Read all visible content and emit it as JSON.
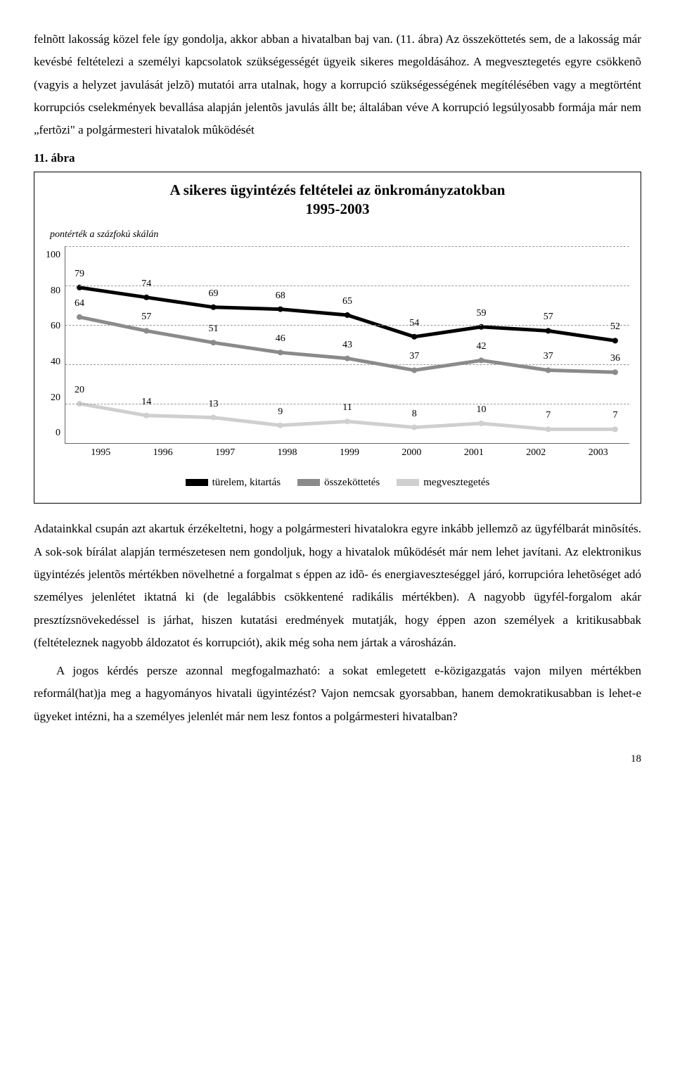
{
  "para1": "felnõtt lakosság közel fele így gondolja, akkor abban a hivatalban baj van. (11. ábra) Az összeköttetés sem, de a lakosság már kevésbé feltételezi a személyi kapcsolatok szükségességét ügyeik sikeres megoldásához. A megvesztegetés egyre csökkenõ (vagyis a helyzet javulását jelzõ) mutatói arra utalnak, hogy a korrupció szükségességének megítélésében vagy a megtörtént korrupciós cselekmények bevallása alapján jelentõs javulás állt be; általában véve A korrupció legsúlyosabb formája már nem „fertõzi\" a polgármesteri hivatalok mûködését",
  "fig_label": "11. ábra",
  "chart": {
    "title_line1": "A sikeres ügyintézés feltételei az önkrományzatokban",
    "title_line2": "1995‑2003",
    "subtitle": "pontérték a százfokú skálán",
    "years": [
      "1995",
      "1996",
      "1997",
      "1998",
      "1999",
      "2000",
      "2001",
      "2002",
      "2003"
    ],
    "yticks": [
      0,
      20,
      40,
      60,
      80,
      100
    ],
    "series": [
      {
        "name": "türelem, kitartás",
        "color": "#000000",
        "width": 5,
        "values": [
          79,
          74,
          69,
          68,
          65,
          54,
          59,
          57,
          52
        ]
      },
      {
        "name": "összeköttetés",
        "color": "#8a8a8a",
        "width": 5,
        "values": [
          64,
          57,
          51,
          46,
          43,
          37,
          42,
          37,
          36
        ]
      },
      {
        "name": "megvesztegetés",
        "color": "#cfcfcf",
        "width": 5,
        "values": [
          20,
          14,
          13,
          9,
          11,
          8,
          10,
          7,
          7
        ]
      }
    ],
    "ymax": 100,
    "grid_color": "#999"
  },
  "para2": "Adatainkkal csupán azt akartuk érzékeltetni, hogy a polgármesteri hivatalokra egyre inkább jellemzõ az ügyfélbarát minõsítés. A sok‑sok bírálat alapján természetesen nem gondoljuk, hogy a hivatalok mûködését már nem lehet javítani. Az elektronikus ügyintézés jelentõs mértékben növelhetné a forgalmat s éppen az idõ- és energiaveszteséggel járó, korrupcióra lehetõséget adó személyes jelenlétet iktatná ki (de legalábbis csökkentené radikális mértékben). A nagyobb ügyfél‑forgalom akár presztízsnövekedéssel is járhat, hiszen kutatási eredmények mutatják, hogy éppen azon személyek a kritikusabbak (feltételeznek nagyobb áldozatot és korrupciót), akik még soha nem jártak a városházán.",
  "para3": "A jogos kérdés persze azonnal megfogalmazható: a sokat emlegetett e‑közigazgatás vajon milyen mértékben reformál(hat)ja meg a hagyományos hivatali ügyintézést? Vajon nemcsak gyorsabban, hanem demokratikusabban is lehet‑e ügyeket intézni, ha a személyes jelenlét már nem lesz fontos a polgármesteri hivatalban?",
  "page_number": "18"
}
